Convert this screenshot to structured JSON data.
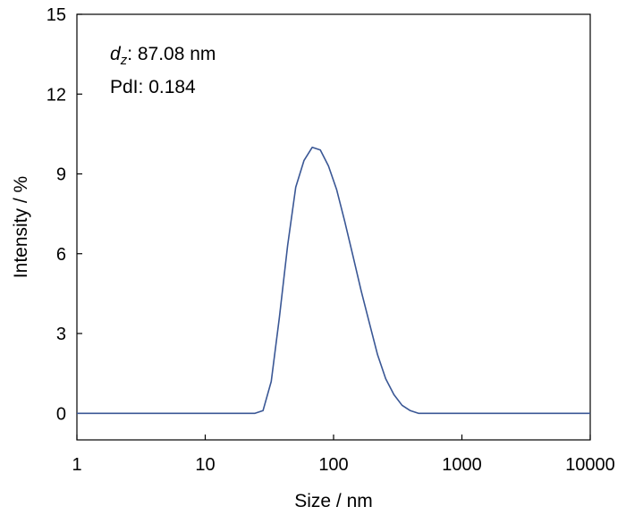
{
  "chart_data": {
    "type": "line",
    "title": "",
    "xlabel": "Size / nm",
    "ylabel": "Intensity / %",
    "xscale": "log",
    "xlim": [
      1,
      10000
    ],
    "ylim": [
      -1,
      15
    ],
    "xticks": [
      1,
      10,
      100,
      1000,
      10000
    ],
    "xtick_labels": [
      "1",
      "10",
      "100",
      "1000",
      "10000"
    ],
    "yticks": [
      0,
      3,
      6,
      9,
      12,
      15
    ],
    "ytick_labels": [
      "0",
      "3",
      "6",
      "9",
      "12",
      "15"
    ],
    "grid": false,
    "legend": "none",
    "line_color": "#3a5795",
    "annotations": {
      "dz_symbol": "d",
      "dz_subscript": "z",
      "dz_text": ": 87.08 nm",
      "pdi_text": "PdI: 0.184"
    },
    "series": [
      {
        "x": [
          1,
          24.4,
          28.2,
          32.7,
          37.8,
          43.8,
          50.7,
          58.8,
          68.1,
          78.8,
          91.3,
          105.7,
          122.4,
          141.8,
          164.2,
          190.1,
          220.2,
          255.0,
          295.3,
          342.0,
          396.1,
          458.7,
          531.2,
          10000
        ],
        "y": [
          0,
          0,
          0.1,
          1.2,
          3.6,
          6.3,
          8.5,
          9.5,
          10.0,
          9.9,
          9.3,
          8.4,
          7.2,
          5.9,
          4.6,
          3.4,
          2.2,
          1.3,
          0.7,
          0.3,
          0.1,
          0,
          0,
          0
        ]
      }
    ]
  }
}
